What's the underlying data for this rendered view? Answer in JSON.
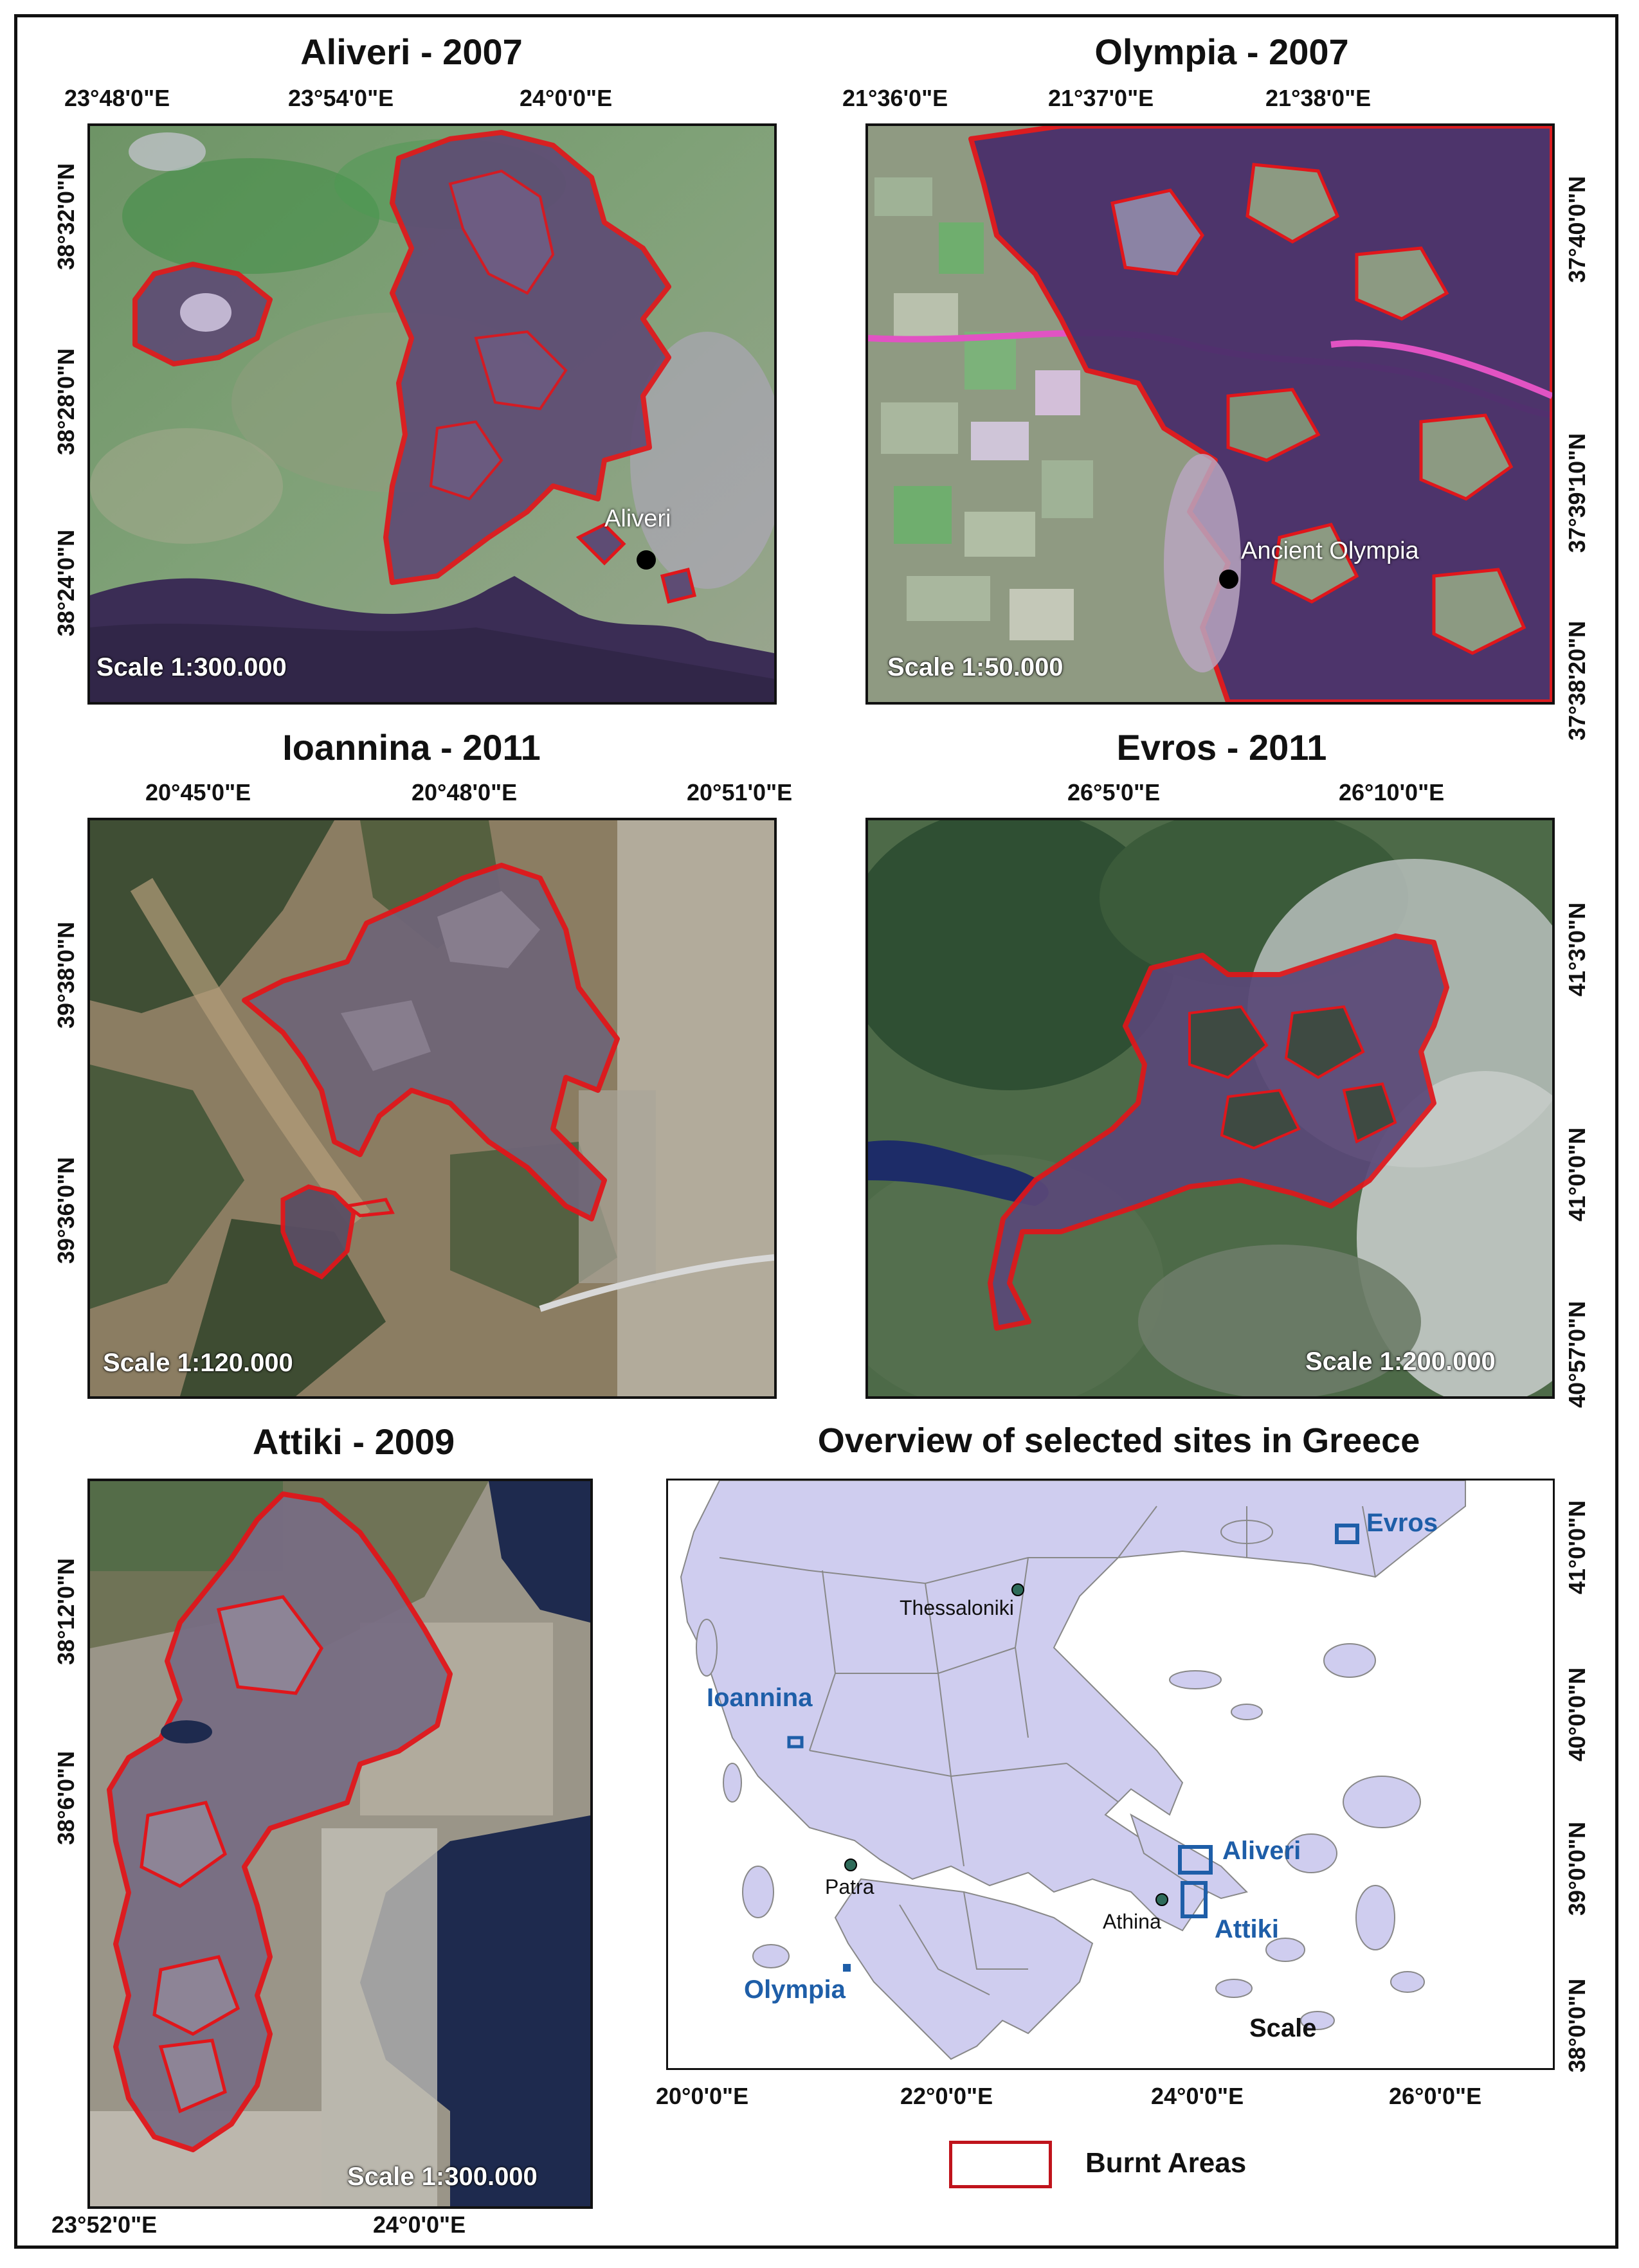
{
  "colors": {
    "burn_outline": "#e0161b",
    "burn_fill": "#5e4c74",
    "site_box": "#1e5ea8",
    "land": "#cfcdef"
  },
  "panels": {
    "aliveri": {
      "title": "Aliveri - 2007",
      "scale": "Scale 1:300.000",
      "top_coords": [
        "23°48'0\"E",
        "23°54'0\"E",
        "24°0'0\"E"
      ],
      "left_coords": [
        "38°32'0\"N",
        "38°28'0\"N",
        "38°24'0\"N"
      ],
      "place": "Aliveri"
    },
    "olympia": {
      "title": "Olympia - 2007",
      "scale": "Scale 1:50.000",
      "top_coords": [
        "21°36'0\"E",
        "21°37'0\"E",
        "21°38'0\"E"
      ],
      "right_coords": [
        "37°40'0\"N",
        "37°39'10\"N",
        "37°38'20\"N"
      ],
      "place": "Ancient Olympia"
    },
    "ioannina": {
      "title": "Ioannina - 2011",
      "scale": "Scale 1:120.000",
      "top_coords": [
        "20°45'0\"E",
        "20°48'0\"E",
        "20°51'0\"E"
      ],
      "left_coords": [
        "39°38'0\"N",
        "39°36'0\"N"
      ]
    },
    "evros": {
      "title": "Evros - 2011",
      "scale": "Scale 1:200.000",
      "top_coords": [
        "26°5'0\"E",
        "26°10'0\"E"
      ],
      "right_coords": [
        "41°3'0\"N",
        "41°0'0\"N",
        "40°57'0\"N"
      ]
    },
    "attiki": {
      "title": "Attiki - 2009",
      "scale": "Scale 1:300.000",
      "bottom_coords": [
        "23°52'0\"E",
        "24°0'0\"E"
      ],
      "left_coords": [
        "38°12'0\"N",
        "38°6'0\"N"
      ]
    },
    "overview": {
      "title": "Overview of selected sites in Greece",
      "sites": [
        "Evros",
        "Ioannina",
        "Aliveri",
        "Attiki",
        "Olympia"
      ],
      "cities": [
        "Thessaloniki",
        "Patra",
        "Athina"
      ],
      "scale_word": "Scale",
      "bottom_coords": [
        "20°0'0\"E",
        "22°0'0\"E",
        "24°0'0\"E",
        "26°0'0\"E"
      ],
      "right_coords": [
        "41°0'0\"N",
        "40°0'0\"N",
        "39°0'0\"N",
        "38°0'0\"N"
      ]
    }
  },
  "legend": {
    "label": "Burnt Areas"
  }
}
